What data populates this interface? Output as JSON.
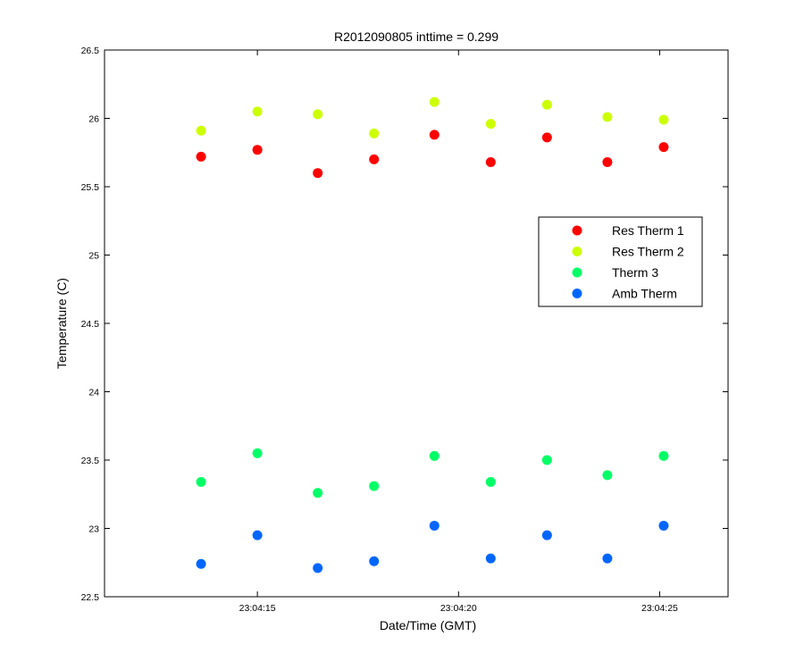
{
  "chart_data": {
    "type": "scatter",
    "title": "R2012090805 inttime = 0.299",
    "xlabel": "Date/Time (GMT)",
    "ylabel": "Temperature (C)",
    "x_ticks": [
      "23:04:15",
      "23:04:20",
      "23:04:25"
    ],
    "y_ticks": [
      "22.5",
      "23",
      "23.5",
      "24",
      "24.5",
      "25",
      "25.5",
      "26",
      "26.5"
    ],
    "xlim": [
      "23:04:11.20",
      "23:04:26.70"
    ],
    "ylim": [
      22.5,
      26.5
    ],
    "grid": false,
    "legend_position": "right",
    "x": [
      "23:04:13.6",
      "23:04:15.0",
      "23:04:16.5",
      "23:04:17.9",
      "23:04:19.4",
      "23:04:20.8",
      "23:04:22.2",
      "23:04:23.7",
      "23:04:25.1"
    ],
    "series": [
      {
        "name": "Res Therm 1",
        "color": "#ff0000",
        "values": [
          25.72,
          25.77,
          25.6,
          25.7,
          25.88,
          25.68,
          25.86,
          25.68,
          25.79
        ]
      },
      {
        "name": "Res Therm 2",
        "color": "#ccff00",
        "values": [
          25.91,
          26.05,
          26.03,
          25.89,
          26.12,
          25.96,
          26.1,
          26.01,
          25.99
        ]
      },
      {
        "name": "Therm 3",
        "color": "#00ff66",
        "values": [
          23.34,
          23.55,
          23.26,
          23.31,
          23.53,
          23.34,
          23.5,
          23.39,
          23.53
        ]
      },
      {
        "name": "Amb Therm",
        "color": "#0066ff",
        "values": [
          22.74,
          22.95,
          22.71,
          22.76,
          23.02,
          22.78,
          22.95,
          22.78,
          23.02
        ]
      }
    ]
  }
}
